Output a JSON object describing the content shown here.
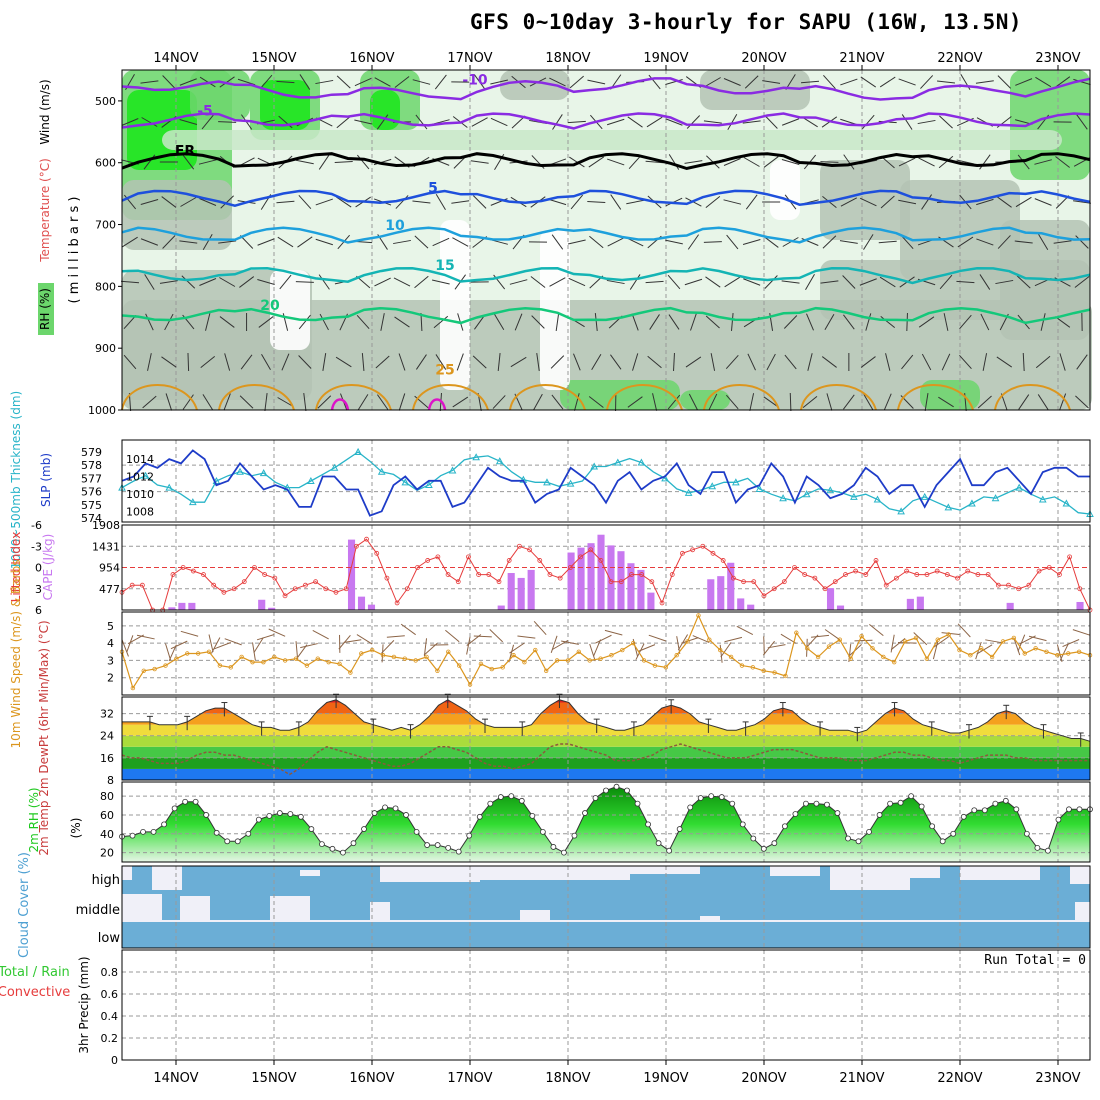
{
  "title": "GFS 0~10day 3-hourly for SAPU (16W, 13.5N)",
  "dates": [
    "14NOV",
    "15NOV",
    "16NOV",
    "17NOV",
    "18NOV",
    "19NOV",
    "20NOV",
    "21NOV",
    "22NOV",
    "23NOV"
  ],
  "colors": {
    "rh_light": "#e8f5e8",
    "rh_mid": "#c8e8c8",
    "rh_green": "#6cd66c",
    "rh_bright": "#19e619",
    "rh_gray": "#b4c3b4",
    "temp_purple": "#8a2be2",
    "temp_blue": "#1e50dc",
    "temp_cyan": "#1ea0dc",
    "temp_teal": "#14b4b4",
    "temp_green": "#14c87a",
    "temp_orange": "#dc961e",
    "temp_magenta": "#dc14c8",
    "slp": "#1e3cc8",
    "thickness": "#28b4c8",
    "li": "#e63c3c",
    "cape": "#c878f0",
    "wind": "#dc961e",
    "barb": "#8c6446",
    "cloud": "#6baed6",
    "rh2m": "#1ec81e"
  },
  "chart_data": [
    {
      "type": "heatmap",
      "name": "upper-air",
      "ylabel_parts": [
        "RH (%)",
        "Temperature (°C)",
        "Wind (m/s)",
        "( m i l l i b a r s )"
      ],
      "yticks": [
        "500",
        "600",
        "700",
        "800",
        "900",
        "1000"
      ],
      "ylim": [
        450,
        1000
      ],
      "temperature_contours": [
        {
          "value": -10,
          "label": "-10",
          "level": 480
        },
        {
          "value": -5,
          "label": "-5",
          "level": 530
        },
        {
          "value": 0,
          "label": "FR",
          "level": 595
        },
        {
          "value": 5,
          "label": "5",
          "level": 655
        },
        {
          "value": 10,
          "label": "10",
          "level": 715
        },
        {
          "value": 15,
          "label": "15",
          "level": 780
        },
        {
          "value": 20,
          "label": "20",
          "level": 845
        },
        {
          "value": 25,
          "label": "25",
          "level": 930
        }
      ]
    },
    {
      "type": "line",
      "name": "slp-thickness",
      "ylabel_left": "1000~500mb Thickness (dm)",
      "ylabel_right": "SLP (mb)",
      "yticks_left": [
        "574",
        "575",
        "576",
        "577",
        "578",
        "579"
      ],
      "yticks_right": [
        "1008",
        "1010",
        "1012",
        "1014"
      ],
      "slp": [
        1011.5,
        1012,
        1013.5,
        1013,
        1014,
        1013.5,
        1015,
        1014,
        1011,
        1011.5,
        1013.5,
        1012,
        1010.5,
        1011,
        1010.5,
        1008.5,
        1008.5,
        1012,
        1012,
        1010.5,
        1010.5,
        1007.5,
        1008,
        1011,
        1012,
        1010.5,
        1011.5,
        1011.5,
        1008.5,
        1009,
        1011,
        1013,
        1012,
        1011.5,
        1011.5,
        1009,
        1010,
        1010.5,
        1013,
        1012,
        1011,
        1009,
        1011.5,
        1012.5,
        1010.5,
        1011.5,
        1012,
        1013.5,
        1011,
        1010,
        1012.5,
        1012.5,
        1009,
        1010.5,
        1011,
        1013.5,
        1012,
        1009,
        1012,
        1011,
        1009.5,
        1010,
        1011,
        1013,
        1012,
        1010,
        1011,
        1011,
        1008.5,
        1011,
        1012.5,
        1014,
        1011,
        1011,
        1012.5,
        1013,
        1011.5,
        1010,
        1012.5,
        1013,
        1013,
        1012,
        1012
      ],
      "thickness": [
        576.3,
        576.8,
        577.2,
        576.5,
        576.3,
        575.8,
        575.2,
        575.2,
        576.8,
        577.2,
        577.5,
        577.2,
        577.4,
        576.7,
        576.3,
        576.3,
        576.8,
        577.3,
        577.8,
        578.4,
        579,
        578.3,
        577.5,
        577.3,
        576.7,
        576.1,
        576.5,
        577.2,
        577.6,
        578.4,
        578.6,
        578.7,
        578.3,
        577.5,
        576.9,
        576.7,
        576.7,
        576.4,
        576.6,
        576.8,
        577.9,
        577.9,
        578.2,
        578.5,
        578.2,
        577.5,
        577,
        576.2,
        575.9,
        576.1,
        576.4,
        576.7,
        576.7,
        577,
        576.2,
        575.8,
        575.5,
        575.3,
        575.8,
        576.2,
        576.1,
        575.9,
        575.6,
        575.8,
        575.4,
        574.7,
        574.5,
        575.3,
        575.6,
        575.2,
        574.8,
        574.6,
        575.1,
        575.6,
        575.5,
        575.9,
        576.3,
        575.8,
        575.4,
        575.6,
        575.1,
        574.4,
        574.3
      ]
    },
    {
      "type": "bar",
      "name": "li-cape",
      "ylabel_left": "Lifted Index",
      "ylabel_right": "CAPE (J/kg)",
      "yticks_left": [
        "-6",
        "-3",
        "0",
        "3",
        "6"
      ],
      "yticks_right": [
        "477",
        "954",
        "1431",
        "1908"
      ],
      "lifted_index": [
        3.5,
        2.5,
        2.5,
        6,
        6,
        1,
        0,
        0.5,
        1,
        2.5,
        3.5,
        3,
        2,
        0,
        1,
        1.5,
        4,
        3,
        2.5,
        2,
        3,
        3.5,
        3,
        -3,
        -4,
        -2,
        1.5,
        5,
        3,
        0,
        -1,
        -1.5,
        1,
        2,
        -1.5,
        1,
        1,
        2,
        -1,
        -3,
        -2.5,
        -1,
        1,
        1.5,
        0,
        -1.5,
        -2.5,
        -1,
        2,
        2,
        1,
        1,
        2,
        5,
        1,
        -2,
        -2.5,
        -3,
        -2,
        -1,
        1.5,
        2,
        2,
        4,
        3,
        2,
        0,
        1,
        1.5,
        3,
        2,
        1,
        0.5,
        1,
        -1,
        2.5,
        1.5,
        0.5,
        1,
        1,
        0.5,
        1,
        1.5,
        0.5,
        1,
        1,
        2.5,
        2.5,
        3,
        2.5,
        0.5,
        0,
        1,
        -1.5,
        3,
        6
      ],
      "cape": [
        0,
        0,
        0,
        0,
        0,
        60,
        160,
        160,
        0,
        0,
        0,
        0,
        0,
        0,
        230,
        50,
        0,
        0,
        0,
        0,
        0,
        0,
        0,
        1580,
        300,
        120,
        0,
        0,
        0,
        0,
        0,
        0,
        0,
        0,
        0,
        0,
        0,
        0,
        100,
        830,
        720,
        900,
        0,
        0,
        0,
        1290,
        1400,
        1500,
        1690,
        1450,
        1320,
        1050,
        900,
        390,
        0,
        0,
        0,
        0,
        0,
        690,
        760,
        1060,
        260,
        120,
        0,
        0,
        0,
        0,
        0,
        0,
        0,
        490,
        100,
        0,
        0,
        0,
        0,
        0,
        0,
        250,
        300,
        0,
        0,
        0,
        0,
        0,
        0,
        0,
        0,
        160,
        0,
        0,
        0,
        0,
        0,
        0,
        180,
        0
      ]
    },
    {
      "type": "line",
      "name": "wind-speed",
      "ylabel": "10m Wind Speed (m/s) & Barbs",
      "yticks": [
        "2",
        "3",
        "4",
        "5"
      ],
      "values": [
        3.5,
        1.4,
        2.4,
        2.5,
        2.7,
        3.1,
        3.4,
        3.4,
        3.5,
        2.7,
        2.6,
        3.2,
        2.9,
        2.9,
        3.2,
        3,
        3.1,
        2.7,
        3.1,
        2.9,
        2.8,
        2.3,
        3.4,
        3.6,
        3.3,
        3.2,
        3.1,
        3,
        3.2,
        2.4,
        3.5,
        2.7,
        1.6,
        2.8,
        2.5,
        2.6,
        3.3,
        2.9,
        3.6,
        2.4,
        3,
        3,
        3.5,
        3,
        3.1,
        3.3,
        3.6,
        4,
        3,
        2.7,
        2.6,
        3.3,
        4.1,
        5.6,
        4.2,
        3.6,
        3.2,
        2.7,
        2.6,
        2.4,
        2.3,
        2.1,
        4.6,
        3.7,
        3.2,
        3.8,
        4.2,
        3.1,
        4.4,
        3.7,
        3.2,
        2.9,
        4.1,
        4.3,
        3.1,
        4.2,
        4.5,
        3.6,
        3.3,
        3.7,
        3.2,
        4.1,
        4.3,
        3.4,
        3.7,
        3.5,
        3.3,
        3.4,
        3.5,
        3.3
      ]
    },
    {
      "type": "area",
      "name": "temperature",
      "ylabel": "2m Temp 2m DewPt (6hr Min/Max) (°C)",
      "yticks": [
        "8",
        "16",
        "24",
        "32"
      ],
      "temp": [
        29,
        29,
        29,
        29,
        28,
        28,
        28,
        29,
        31,
        33,
        34,
        34,
        32,
        30,
        28,
        27,
        27,
        26,
        26,
        27,
        29,
        33,
        36,
        37,
        35,
        32,
        29,
        28,
        27,
        26,
        27,
        26,
        28,
        31,
        35,
        37,
        35,
        33,
        30,
        28,
        27,
        27,
        27,
        27,
        28,
        32,
        35,
        37,
        36,
        32,
        29,
        28,
        27,
        26,
        26,
        27,
        28,
        31,
        34,
        35,
        34,
        32,
        29,
        28,
        27,
        26,
        26,
        27,
        28,
        30,
        33,
        34,
        33,
        30,
        28,
        27,
        26,
        26,
        26,
        25,
        26,
        29,
        32,
        34,
        33,
        30,
        28,
        27,
        26,
        25,
        25,
        26,
        27,
        29,
        32,
        33,
        32,
        29,
        27,
        26,
        25,
        24,
        23,
        23,
        22
      ],
      "dewpt": [
        17,
        16,
        16,
        15,
        14,
        14,
        14,
        15,
        17,
        18,
        18,
        17,
        17,
        16,
        15,
        14,
        13,
        12,
        10,
        12,
        15,
        18,
        20,
        19,
        18,
        17,
        16,
        15,
        14,
        13,
        13,
        14,
        16,
        18,
        20,
        20,
        19,
        18,
        16,
        14,
        13,
        13,
        12,
        13,
        14,
        17,
        20,
        21,
        21,
        20,
        19,
        18,
        17,
        15,
        15,
        15,
        16,
        17,
        19,
        20,
        21,
        20,
        19,
        18,
        17,
        16,
        16,
        16,
        17,
        18,
        19,
        19,
        19,
        18,
        17,
        16,
        16,
        16,
        15,
        15,
        15,
        16,
        17,
        18,
        18,
        17,
        17,
        16,
        15,
        15,
        14,
        15,
        16,
        17,
        17,
        17,
        16,
        16,
        15,
        15,
        15,
        15,
        15,
        15,
        15
      ]
    },
    {
      "type": "area",
      "name": "rh2m",
      "ylabel": "2m RH (%)",
      "yticks": [
        "20",
        "40",
        "60",
        "80"
      ],
      "values": [
        37,
        38,
        42,
        42,
        50,
        67,
        74,
        74,
        60,
        41,
        32,
        32,
        40,
        55,
        59,
        62,
        61,
        58,
        45,
        29,
        24,
        20,
        30,
        45,
        62,
        68,
        67,
        60,
        42,
        28,
        28,
        25,
        21,
        38,
        58,
        72,
        79,
        80,
        75,
        59,
        42,
        26,
        20,
        38,
        62,
        78,
        86,
        90,
        86,
        72,
        50,
        30,
        22,
        45,
        68,
        78,
        80,
        79,
        72,
        50,
        35,
        24,
        30,
        48,
        61,
        72,
        72,
        71,
        62,
        35,
        32,
        42,
        60,
        72,
        73,
        80,
        69,
        48,
        32,
        40,
        58,
        65,
        65,
        72,
        75,
        66,
        40,
        25,
        22,
        55,
        66,
        66,
        66
      ]
    },
    {
      "type": "heatmap",
      "name": "cloud-cover",
      "ylabel": "Cloud Cover (%)",
      "rows": [
        "high",
        "middle",
        "low"
      ]
    },
    {
      "type": "bar",
      "name": "precip",
      "ylabel": "3hr Precip (mm)",
      "ylabel_extra": [
        "Total / Rain",
        "Convective"
      ],
      "yticks": [
        "0",
        "0.2",
        "0.4",
        "0.6",
        "0.8"
      ],
      "ylim": [
        0,
        1
      ],
      "values": [],
      "annotation": "Run Total = 0"
    }
  ]
}
